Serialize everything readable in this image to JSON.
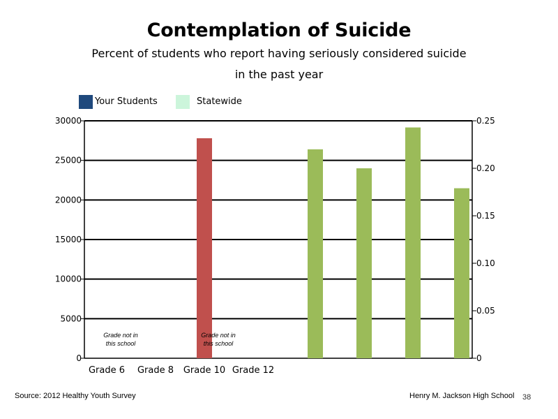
{
  "chart_data": {
    "type": "bar",
    "title": "Contemplation of Suicide",
    "subtitle_lines": [
      "Percent of students who report having seriously considered suicide",
      "in the past year"
    ],
    "legend": [
      {
        "name": "Your Students",
        "color": "#1f497d"
      },
      {
        "name": "Statewide",
        "color": "#ccf5db"
      }
    ],
    "categories": [
      "Grade 6",
      "Grade 8",
      "Grade 10",
      "Grade 12"
    ],
    "left_axis": {
      "ylim": [
        0,
        30000
      ],
      "ticks": [
        "0",
        "5000",
        "10000",
        "15000",
        "20000",
        "25000",
        "30000"
      ]
    },
    "right_axis": {
      "ylim": [
        0,
        0.25
      ],
      "ticks": [
        "0",
        "0.05",
        "0.10",
        "0.15",
        "0.20",
        "0.25"
      ]
    },
    "series": [
      {
        "axis": "left",
        "color": "#c0504d",
        "points": [
          {
            "category": "Grade 10",
            "value": 27800
          }
        ]
      },
      {
        "axis": "right",
        "color": "#9bbb59",
        "values": [
          0.22,
          0.2,
          0.243,
          0.179
        ]
      }
    ],
    "annotations": [
      {
        "category": "Grade 6",
        "lines": [
          "Grade not in",
          "this school"
        ]
      },
      {
        "category": "Grade 10",
        "lines": [
          "Grade not in",
          "this school"
        ]
      }
    ],
    "grid": true
  },
  "footer": {
    "source": "Source: 2012 Healthy Youth Survey",
    "school": "Henry M. Jackson High School",
    "page": "38"
  }
}
